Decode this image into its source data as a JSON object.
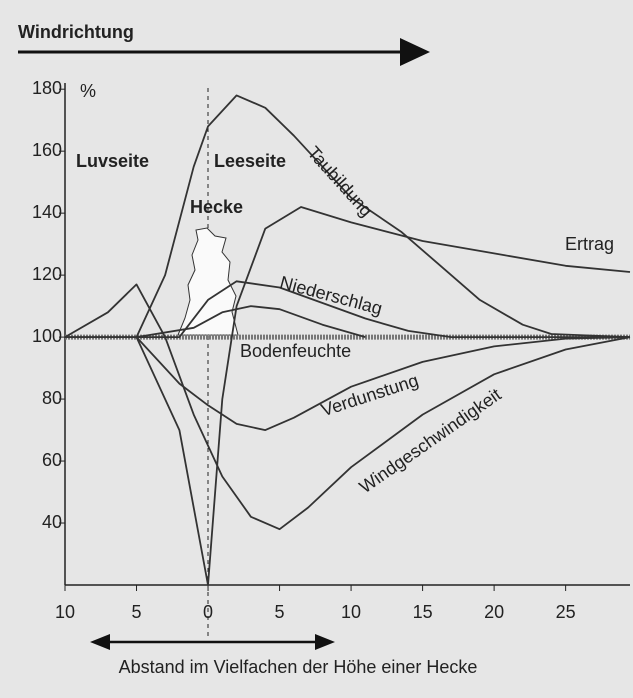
{
  "chart_data": {
    "type": "line",
    "title": "Windrichtung",
    "y_unit": "%",
    "x_label": "Abstand im Vielfachen der Höhe einer Hecke",
    "annotations": [
      "Luvseite",
      "Leeseite",
      "Hecke"
    ],
    "xlim": [
      -10,
      29.5
    ],
    "ylim": [
      20,
      182
    ],
    "xticks": [
      {
        "value": -10,
        "label": "10"
      },
      {
        "value": -5,
        "label": "5"
      },
      0,
      5,
      10,
      15,
      20,
      25
    ],
    "yticks": [
      40,
      60,
      80,
      100,
      120,
      140,
      160,
      180
    ],
    "baseline": 100,
    "series": [
      {
        "name": "Taubildung",
        "color": "#333333",
        "x": [
          -5,
          -3,
          -1,
          0,
          2,
          4,
          6,
          8,
          10,
          13.5,
          16,
          19,
          22,
          24,
          29.5
        ],
        "values": [
          100,
          120,
          155,
          168,
          178,
          174,
          165,
          155,
          145,
          134,
          124,
          112,
          104,
          101,
          100
        ]
      },
      {
        "name": "Ertrag",
        "color": "#333333",
        "x": [
          -10,
          -5,
          -2,
          0,
          1,
          2,
          4,
          6.5,
          10,
          15,
          20,
          25,
          29.5
        ],
        "values": [
          100,
          100,
          70,
          20,
          80,
          110,
          135,
          142,
          137,
          131,
          127,
          123,
          121
        ]
      },
      {
        "name": "Niederschlag",
        "color": "#333333",
        "x": [
          -5,
          -2,
          0,
          2,
          5,
          8,
          11,
          14,
          17,
          29.5
        ],
        "values": [
          100,
          100,
          112,
          118,
          116,
          111,
          106,
          102,
          100,
          100
        ]
      },
      {
        "name": "Bodenfeuchte",
        "color": "#333333",
        "x": [
          -5,
          -1,
          1,
          3,
          5,
          8,
          11
        ],
        "values": [
          100,
          103,
          108,
          110,
          109,
          104,
          100
        ]
      },
      {
        "name": "Verdunstung",
        "color": "#333333",
        "x": [
          -10,
          -5,
          -2,
          0,
          2,
          4,
          6,
          10,
          15,
          20,
          25,
          29.5
        ],
        "values": [
          100,
          100,
          85,
          78,
          72,
          70,
          74,
          84,
          92,
          97,
          99.5,
          100
        ]
      },
      {
        "name": "Windgeschwindigkeit",
        "color": "#333333",
        "x": [
          -10,
          -7,
          -5,
          -3,
          -1,
          1,
          3,
          5,
          7,
          10,
          15,
          20,
          25,
          29.5
        ],
        "values": [
          100,
          108,
          117,
          100,
          75,
          55,
          42,
          38,
          45,
          58,
          75,
          88,
          96,
          100
        ]
      }
    ]
  }
}
